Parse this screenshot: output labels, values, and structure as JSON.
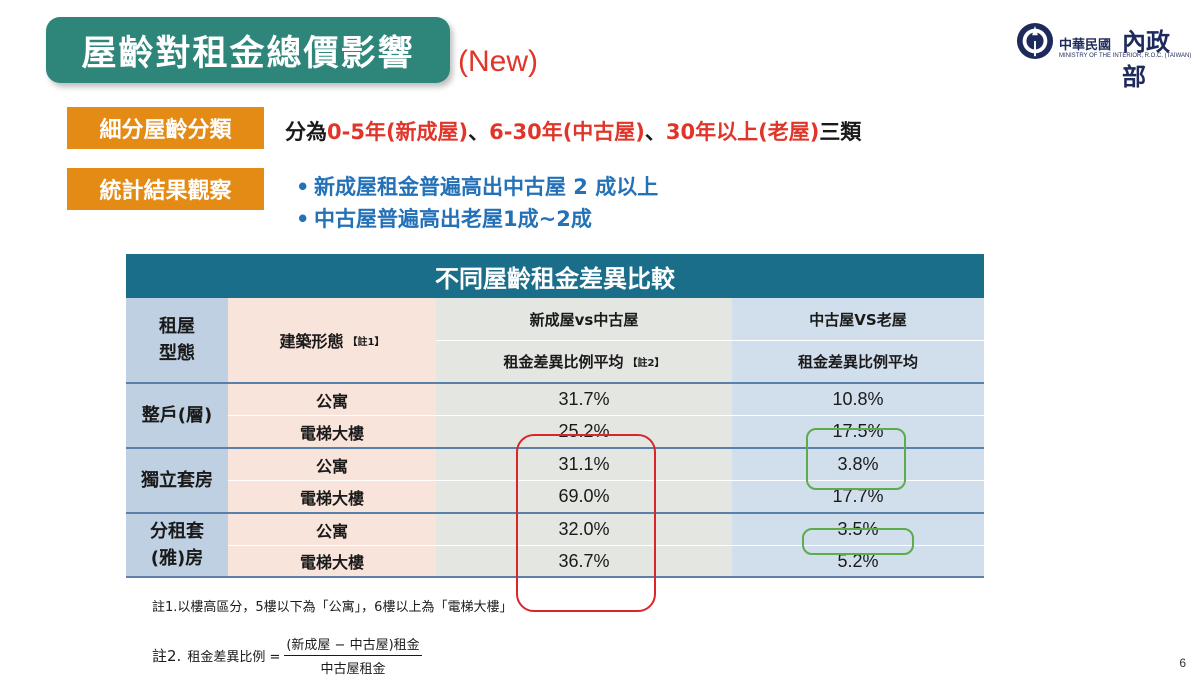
{
  "slide": {
    "title": "屋齡對租金總價影響",
    "title_badge": "(New)",
    "page_number": "6"
  },
  "logo": {
    "name_small": "中華民國",
    "name_big": "內政部",
    "name_en": "MINISTRY OF THE INTERIOR, R.O.C. (TAIWAN)"
  },
  "classification": {
    "tag": "細分屋齡分類",
    "prefix": "分為",
    "cat1": "0-5年(新成屋)",
    "sep1": "、",
    "cat2": "6-30年(中古屋)",
    "sep2": "、",
    "cat3": "30年以上(老屋)",
    "suffix": "三類"
  },
  "observation": {
    "tag": "統計結果觀察",
    "bullets": [
      "新成屋租金普遍高出中古屋 2 成以上",
      "中古屋普遍高出老屋1成~2成"
    ]
  },
  "table": {
    "title": "不同屋齡租金差異比較",
    "headers": {
      "type": "租屋型態",
      "type_line1": "租屋",
      "type_line2": "型態",
      "building": "建築形態",
      "building_note": "【註1】",
      "new_vs_mid": "新成屋vs中古屋",
      "mid_vs_old": "中古屋VS老屋",
      "ratio_avg": "租金差異比例平均",
      "ratio_note": "【註2】"
    },
    "groups": [
      {
        "type_line1": "整戶(層)",
        "type_line2": "",
        "rows": [
          {
            "building": "公寓",
            "new_vs_mid": "31.7%",
            "mid_vs_old": "10.8%"
          },
          {
            "building": "電梯大樓",
            "new_vs_mid": "25.2%",
            "mid_vs_old": "17.5%"
          }
        ]
      },
      {
        "type_line1": "獨立套房",
        "type_line2": "",
        "rows": [
          {
            "building": "公寓",
            "new_vs_mid": "31.1%",
            "mid_vs_old": "3.8%"
          },
          {
            "building": "電梯大樓",
            "new_vs_mid": "69.0%",
            "mid_vs_old": "17.7%"
          }
        ]
      },
      {
        "type_line1": "分租套",
        "type_line2": "(雅)房",
        "rows": [
          {
            "building": "公寓",
            "new_vs_mid": "32.0%",
            "mid_vs_old": "3.5%"
          },
          {
            "building": "電梯大樓",
            "new_vs_mid": "36.7%",
            "mid_vs_old": "5.2%"
          }
        ]
      }
    ]
  },
  "footnotes": {
    "note1": "註1.以樓高區分，5樓以下為「公寓」，6樓以上為「電梯大樓」",
    "note2_label": "註2.",
    "note2_lhs": "租金差異比例 =",
    "note2_numerator": "(新成屋 − 中古屋)租金",
    "note2_denominator": "中古屋租金"
  },
  "colors": {
    "title_banner": "#2e8579",
    "accent_red": "#e03528",
    "tag_orange": "#e48b16",
    "bullet_blue": "#2471b8",
    "table_header": "#1b6e8a",
    "highlight_red": "#d9262a",
    "highlight_green": "#5cac4a"
  }
}
